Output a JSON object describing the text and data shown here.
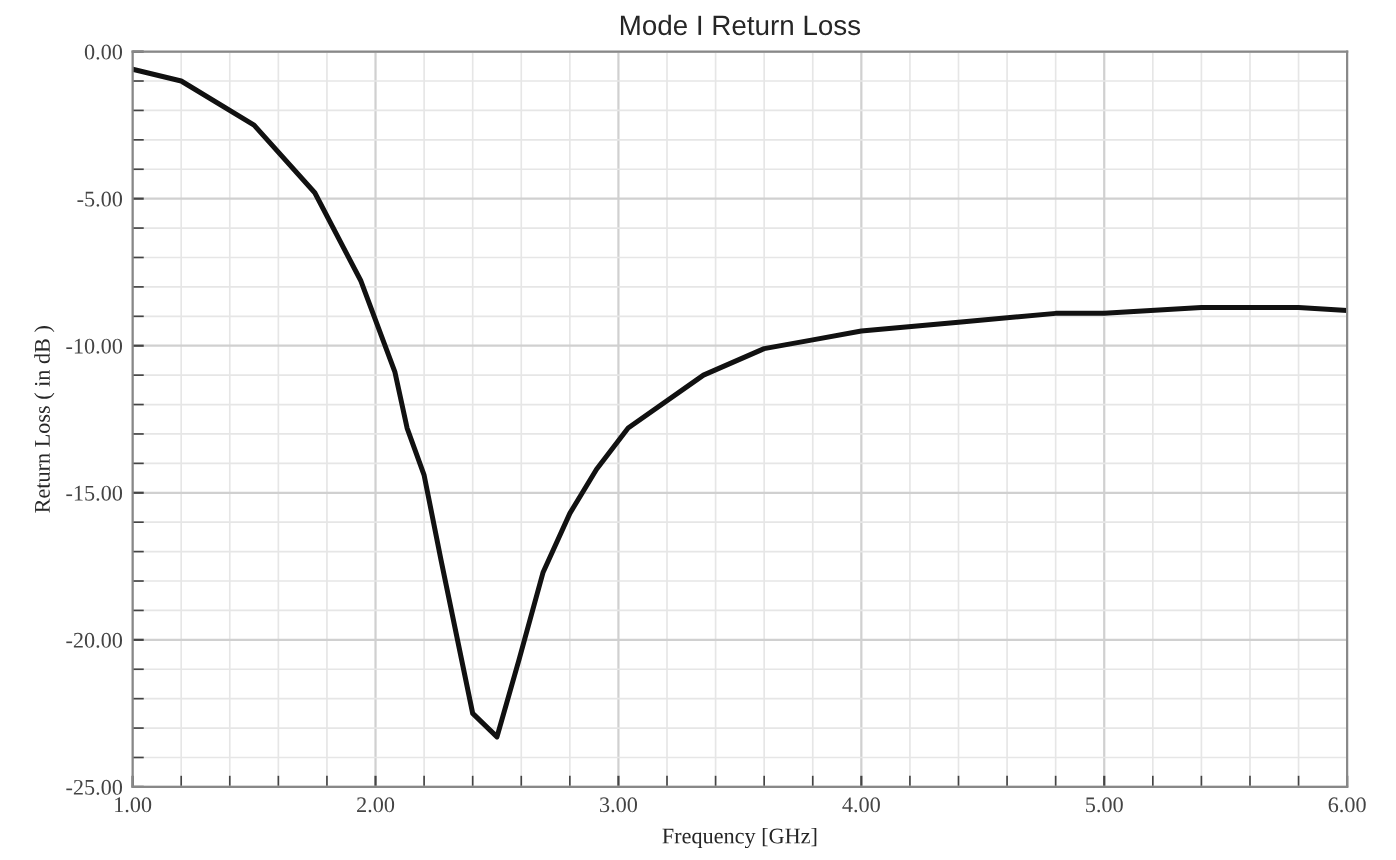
{
  "chart_data": {
    "type": "line",
    "title": "Mode I Return Loss",
    "xlabel": "Frequency [GHz]",
    "ylabel": "Return Loss ( in dB )",
    "x": [
      1.0,
      1.2,
      1.5,
      1.75,
      1.94,
      2.08,
      2.13,
      2.2,
      2.27,
      2.4,
      2.5,
      2.59,
      2.69,
      2.8,
      2.91,
      3.04,
      3.35,
      3.6,
      3.8,
      4.0,
      4.4,
      4.8,
      5.0,
      5.4,
      5.8,
      6.0
    ],
    "series": [
      {
        "color": "#111111",
        "values": [
          -0.6,
          -1.0,
          -2.5,
          -4.8,
          -7.8,
          -10.9,
          -12.8,
          -14.4,
          -17.3,
          -22.5,
          -23.3,
          -20.7,
          -17.7,
          -15.7,
          -14.2,
          -12.8,
          -11.0,
          -10.1,
          -9.8,
          -9.5,
          -9.2,
          -8.9,
          -8.9,
          -8.7,
          -8.7,
          -8.8
        ]
      }
    ],
    "xlim": [
      1,
      6
    ],
    "ylim": [
      -25,
      0
    ],
    "xticks": [
      {
        "value": 1,
        "label": "1.00"
      },
      {
        "value": 2,
        "label": "2.00"
      },
      {
        "value": 3,
        "label": "3.00"
      },
      {
        "value": 4,
        "label": "4.00"
      },
      {
        "value": 5,
        "label": "5.00"
      },
      {
        "value": 6,
        "label": "6.00"
      }
    ],
    "yticks": [
      {
        "value": 0,
        "label": "0.00"
      },
      {
        "value": -5,
        "label": "-5.00"
      },
      {
        "value": -10,
        "label": "-10.00"
      },
      {
        "value": -15,
        "label": "-15.00"
      },
      {
        "value": -20,
        "label": "-20.00"
      },
      {
        "value": -25,
        "label": "-25.00"
      }
    ],
    "grid": true,
    "legend": false,
    "marker": "none",
    "line_style": "solid"
  }
}
